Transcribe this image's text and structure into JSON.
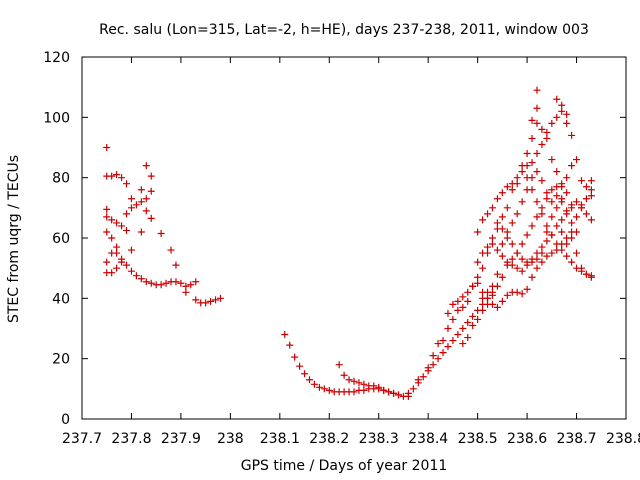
{
  "chart_data": {
    "type": "scatter",
    "title": "Rec. salu (Lon=315, Lat=-2, h=HE), days 237-238, 2011, window 003",
    "xlabel": "GPS time / Days of year 2011",
    "ylabel": "STEC from uqrg / TECUs",
    "xlim": [
      237.7,
      238.8
    ],
    "ylim": [
      0,
      120
    ],
    "x_ticks": [
      237.7,
      237.8,
      237.9,
      238.0,
      238.1,
      238.2,
      238.3,
      238.4,
      238.5,
      238.6,
      238.7,
      238.8
    ],
    "x_tick_labels": [
      "237.7",
      "237.8",
      "237.9",
      "238",
      "238.1",
      "238.2",
      "238.3",
      "238.4",
      "238.5",
      "238.6",
      "238.7",
      "238.8"
    ],
    "y_ticks": [
      0,
      20,
      40,
      60,
      80,
      100,
      120
    ],
    "y_tick_labels": [
      "0",
      "20",
      "40",
      "60",
      "80",
      "100",
      "120"
    ],
    "grid": false,
    "marker": "plus",
    "color": "#cc0000",
    "series": [
      {
        "points": [
          [
            237.75,
            90
          ],
          [
            237.75,
            80.5
          ],
          [
            237.76,
            80.5
          ],
          [
            237.77,
            81
          ],
          [
            237.78,
            80
          ],
          [
            237.79,
            78
          ],
          [
            237.8,
            73
          ],
          [
            237.82,
            76
          ],
          [
            237.83,
            84
          ],
          [
            237.84,
            80.5
          ],
          [
            237.84,
            75.5
          ],
          [
            237.75,
            69.5
          ],
          [
            237.75,
            67
          ],
          [
            237.76,
            66
          ],
          [
            237.77,
            65
          ],
          [
            237.78,
            64
          ],
          [
            237.79,
            68
          ],
          [
            237.8,
            70
          ],
          [
            237.81,
            71
          ],
          [
            237.82,
            72
          ],
          [
            237.83,
            73
          ],
          [
            237.83,
            69
          ],
          [
            237.84,
            66.5
          ],
          [
            237.82,
            62
          ],
          [
            237.79,
            62.5
          ],
          [
            237.75,
            62
          ],
          [
            237.76,
            60
          ],
          [
            237.77,
            57
          ],
          [
            237.78,
            53
          ],
          [
            237.79,
            51
          ],
          [
            237.8,
            49
          ],
          [
            237.81,
            47.5
          ],
          [
            237.82,
            46.5
          ],
          [
            237.83,
            45.5
          ],
          [
            237.84,
            45
          ],
          [
            237.85,
            44.5
          ],
          [
            237.86,
            44.5
          ],
          [
            237.87,
            45
          ],
          [
            237.88,
            45.5
          ],
          [
            237.89,
            45.5
          ],
          [
            237.9,
            45
          ],
          [
            237.91,
            44
          ],
          [
            237.92,
            44.5
          ],
          [
            237.93,
            45.5
          ],
          [
            237.75,
            52
          ],
          [
            237.75,
            48.5
          ],
          [
            237.76,
            48.5
          ],
          [
            237.77,
            50
          ],
          [
            237.76,
            55
          ],
          [
            237.77,
            55
          ],
          [
            237.78,
            52
          ],
          [
            237.8,
            56
          ],
          [
            237.86,
            61.5
          ],
          [
            237.88,
            56
          ],
          [
            237.89,
            51
          ],
          [
            237.91,
            42
          ],
          [
            237.93,
            39.5
          ],
          [
            237.94,
            38.5
          ],
          [
            237.95,
            38.5
          ],
          [
            237.96,
            39
          ],
          [
            237.97,
            39.5
          ],
          [
            237.98,
            40
          ],
          [
            238.11,
            28
          ],
          [
            238.12,
            24.5
          ],
          [
            238.13,
            20.5
          ],
          [
            238.14,
            17.5
          ],
          [
            238.15,
            15
          ],
          [
            238.16,
            13
          ],
          [
            238.17,
            11.5
          ],
          [
            238.18,
            10.5
          ],
          [
            238.19,
            10
          ],
          [
            238.2,
            9.5
          ],
          [
            238.21,
            9
          ],
          [
            238.22,
            9
          ],
          [
            238.23,
            9
          ],
          [
            238.24,
            9
          ],
          [
            238.25,
            9
          ],
          [
            238.26,
            9.5
          ],
          [
            238.27,
            9.5
          ],
          [
            238.28,
            10
          ],
          [
            238.29,
            10
          ],
          [
            238.3,
            10
          ],
          [
            238.31,
            9.5
          ],
          [
            238.32,
            9
          ],
          [
            238.33,
            8.5
          ],
          [
            238.34,
            8
          ],
          [
            238.35,
            7.5
          ],
          [
            238.36,
            7.5
          ],
          [
            238.22,
            18
          ],
          [
            238.23,
            14.5
          ],
          [
            238.24,
            13
          ],
          [
            238.25,
            12.5
          ],
          [
            238.26,
            12
          ],
          [
            238.27,
            11.5
          ],
          [
            238.28,
            11
          ],
          [
            238.29,
            11
          ],
          [
            238.3,
            10.5
          ],
          [
            238.31,
            9.5
          ],
          [
            238.32,
            9
          ],
          [
            238.33,
            8.5
          ],
          [
            238.34,
            8
          ],
          [
            238.36,
            8.5
          ],
          [
            238.37,
            10
          ],
          [
            238.38,
            12
          ],
          [
            238.39,
            14
          ],
          [
            238.4,
            16
          ],
          [
            238.41,
            18
          ],
          [
            238.42,
            20
          ],
          [
            238.43,
            22
          ],
          [
            238.44,
            24
          ],
          [
            238.45,
            26
          ],
          [
            238.46,
            28
          ],
          [
            238.47,
            30
          ],
          [
            238.48,
            32
          ],
          [
            238.49,
            34
          ],
          [
            238.5,
            36
          ],
          [
            238.51,
            38
          ],
          [
            238.52,
            40
          ],
          [
            238.53,
            42
          ],
          [
            238.38,
            13
          ],
          [
            238.4,
            17
          ],
          [
            238.41,
            21
          ],
          [
            238.42,
            25
          ],
          [
            238.43,
            26
          ],
          [
            238.44,
            30
          ],
          [
            238.45,
            33
          ],
          [
            238.46,
            36
          ],
          [
            238.47,
            37
          ],
          [
            238.48,
            39
          ],
          [
            238.49,
            44
          ],
          [
            238.5,
            47
          ],
          [
            238.51,
            50
          ],
          [
            238.52,
            55
          ],
          [
            238.53,
            60
          ],
          [
            238.54,
            63
          ],
          [
            238.55,
            67
          ],
          [
            238.56,
            70
          ],
          [
            238.57,
            76
          ],
          [
            238.58,
            78
          ],
          [
            238.59,
            84
          ],
          [
            238.6,
            88
          ],
          [
            238.61,
            93
          ],
          [
            238.62,
            98
          ],
          [
            238.44,
            35
          ],
          [
            238.45,
            38
          ],
          [
            238.46,
            39
          ],
          [
            238.47,
            40.5
          ],
          [
            238.48,
            42
          ],
          [
            238.49,
            44
          ],
          [
            238.5,
            45
          ],
          [
            238.51,
            42
          ],
          [
            238.52,
            40
          ],
          [
            238.53,
            38
          ],
          [
            238.54,
            37
          ],
          [
            238.55,
            39
          ],
          [
            238.56,
            41
          ],
          [
            238.57,
            42
          ],
          [
            238.58,
            42
          ],
          [
            238.59,
            41.5
          ],
          [
            238.6,
            43
          ],
          [
            238.61,
            47
          ],
          [
            238.62,
            50
          ],
          [
            238.63,
            52
          ],
          [
            238.64,
            54
          ],
          [
            238.65,
            55
          ],
          [
            238.66,
            56
          ],
          [
            238.67,
            58
          ],
          [
            238.68,
            60
          ],
          [
            238.69,
            62
          ],
          [
            238.47,
            25
          ],
          [
            238.48,
            27
          ],
          [
            238.49,
            31
          ],
          [
            238.5,
            33
          ],
          [
            238.51,
            36
          ],
          [
            238.52,
            38
          ],
          [
            238.53,
            41
          ],
          [
            238.54,
            44
          ],
          [
            238.55,
            47
          ],
          [
            238.56,
            51
          ],
          [
            238.57,
            53
          ],
          [
            238.58,
            55
          ],
          [
            238.59,
            58
          ],
          [
            238.6,
            61
          ],
          [
            238.61,
            64
          ],
          [
            238.62,
            67
          ],
          [
            238.63,
            70
          ],
          [
            238.64,
            73
          ],
          [
            238.65,
            76
          ],
          [
            238.66,
            77
          ],
          [
            238.67,
            78
          ],
          [
            238.68,
            80
          ],
          [
            238.5,
            62
          ],
          [
            238.51,
            66
          ],
          [
            238.52,
            68
          ],
          [
            238.53,
            70
          ],
          [
            238.54,
            73
          ],
          [
            238.55,
            75
          ],
          [
            238.56,
            77
          ],
          [
            238.57,
            78
          ],
          [
            238.58,
            80
          ],
          [
            238.59,
            82
          ],
          [
            238.6,
            84
          ],
          [
            238.61,
            85
          ],
          [
            238.62,
            88
          ],
          [
            238.63,
            91
          ],
          [
            238.64,
            95
          ],
          [
            238.65,
            98
          ],
          [
            238.66,
            100
          ],
          [
            238.67,
            102
          ],
          [
            238.68,
            101
          ],
          [
            238.5,
            52
          ],
          [
            238.51,
            55
          ],
          [
            238.52,
            57
          ],
          [
            238.53,
            58
          ],
          [
            238.54,
            56
          ],
          [
            238.55,
            54
          ],
          [
            238.56,
            52
          ],
          [
            238.57,
            51
          ],
          [
            238.58,
            50
          ],
          [
            238.59,
            49
          ],
          [
            238.6,
            51
          ],
          [
            238.61,
            53
          ],
          [
            238.62,
            55
          ],
          [
            238.63,
            57
          ],
          [
            238.64,
            59
          ],
          [
            238.65,
            61
          ],
          [
            238.66,
            64
          ],
          [
            238.67,
            66
          ],
          [
            238.68,
            69
          ],
          [
            238.69,
            71
          ],
          [
            238.7,
            72
          ],
          [
            238.71,
            70
          ],
          [
            238.72,
            68
          ],
          [
            238.73,
            66
          ],
          [
            238.62,
            109
          ],
          [
            238.62,
            103
          ],
          [
            238.61,
            99
          ],
          [
            238.63,
            96
          ],
          [
            238.64,
            93
          ],
          [
            238.65,
            86
          ],
          [
            238.66,
            82
          ],
          [
            238.67,
            73
          ],
          [
            238.68,
            68
          ],
          [
            238.69,
            60
          ],
          [
            238.7,
            55
          ],
          [
            238.71,
            50
          ],
          [
            238.72,
            48
          ],
          [
            238.73,
            47
          ],
          [
            238.6,
            80
          ],
          [
            238.61,
            76
          ],
          [
            238.62,
            72
          ],
          [
            238.63,
            68
          ],
          [
            238.64,
            64
          ],
          [
            238.65,
            61
          ],
          [
            238.66,
            58
          ],
          [
            238.67,
            56
          ],
          [
            238.68,
            54
          ],
          [
            238.69,
            52
          ],
          [
            238.7,
            50
          ],
          [
            238.71,
            49
          ],
          [
            238.72,
            48
          ],
          [
            238.73,
            47.5
          ],
          [
            238.66,
            106
          ],
          [
            238.67,
            104
          ],
          [
            238.68,
            98
          ],
          [
            238.69,
            94
          ],
          [
            238.69,
            84
          ],
          [
            238.7,
            86
          ],
          [
            238.71,
            79
          ],
          [
            238.72,
            77
          ],
          [
            238.73,
            79
          ],
          [
            238.73,
            74
          ],
          [
            238.71,
            71
          ],
          [
            238.69,
            65
          ],
          [
            238.7,
            62
          ],
          [
            238.68,
            58
          ],
          [
            238.67,
            62
          ],
          [
            238.54,
            65
          ],
          [
            238.55,
            63
          ],
          [
            238.56,
            60
          ],
          [
            238.57,
            58
          ],
          [
            238.58,
            55
          ],
          [
            238.59,
            53
          ],
          [
            238.6,
            52
          ],
          [
            238.61,
            52
          ],
          [
            238.62,
            53
          ],
          [
            238.63,
            55
          ],
          [
            238.64,
            62
          ],
          [
            238.65,
            67
          ],
          [
            238.66,
            70
          ],
          [
            238.67,
            72
          ],
          [
            238.68,
            75
          ],
          [
            238.69,
            70
          ],
          [
            238.7,
            67
          ],
          [
            238.71,
            70
          ],
          [
            238.72,
            73
          ],
          [
            238.73,
            76
          ],
          [
            238.51,
            40
          ],
          [
            238.52,
            42
          ],
          [
            238.53,
            44
          ],
          [
            238.54,
            48
          ],
          [
            238.55,
            58
          ],
          [
            238.56,
            62
          ],
          [
            238.57,
            65
          ],
          [
            238.58,
            68
          ],
          [
            238.59,
            72
          ],
          [
            238.6,
            76
          ],
          [
            238.61,
            80
          ],
          [
            238.62,
            82
          ],
          [
            238.63,
            79
          ],
          [
            238.64,
            75
          ],
          [
            238.65,
            72
          ],
          [
            238.66,
            74
          ],
          [
            238.67,
            77
          ]
        ]
      }
    ]
  }
}
